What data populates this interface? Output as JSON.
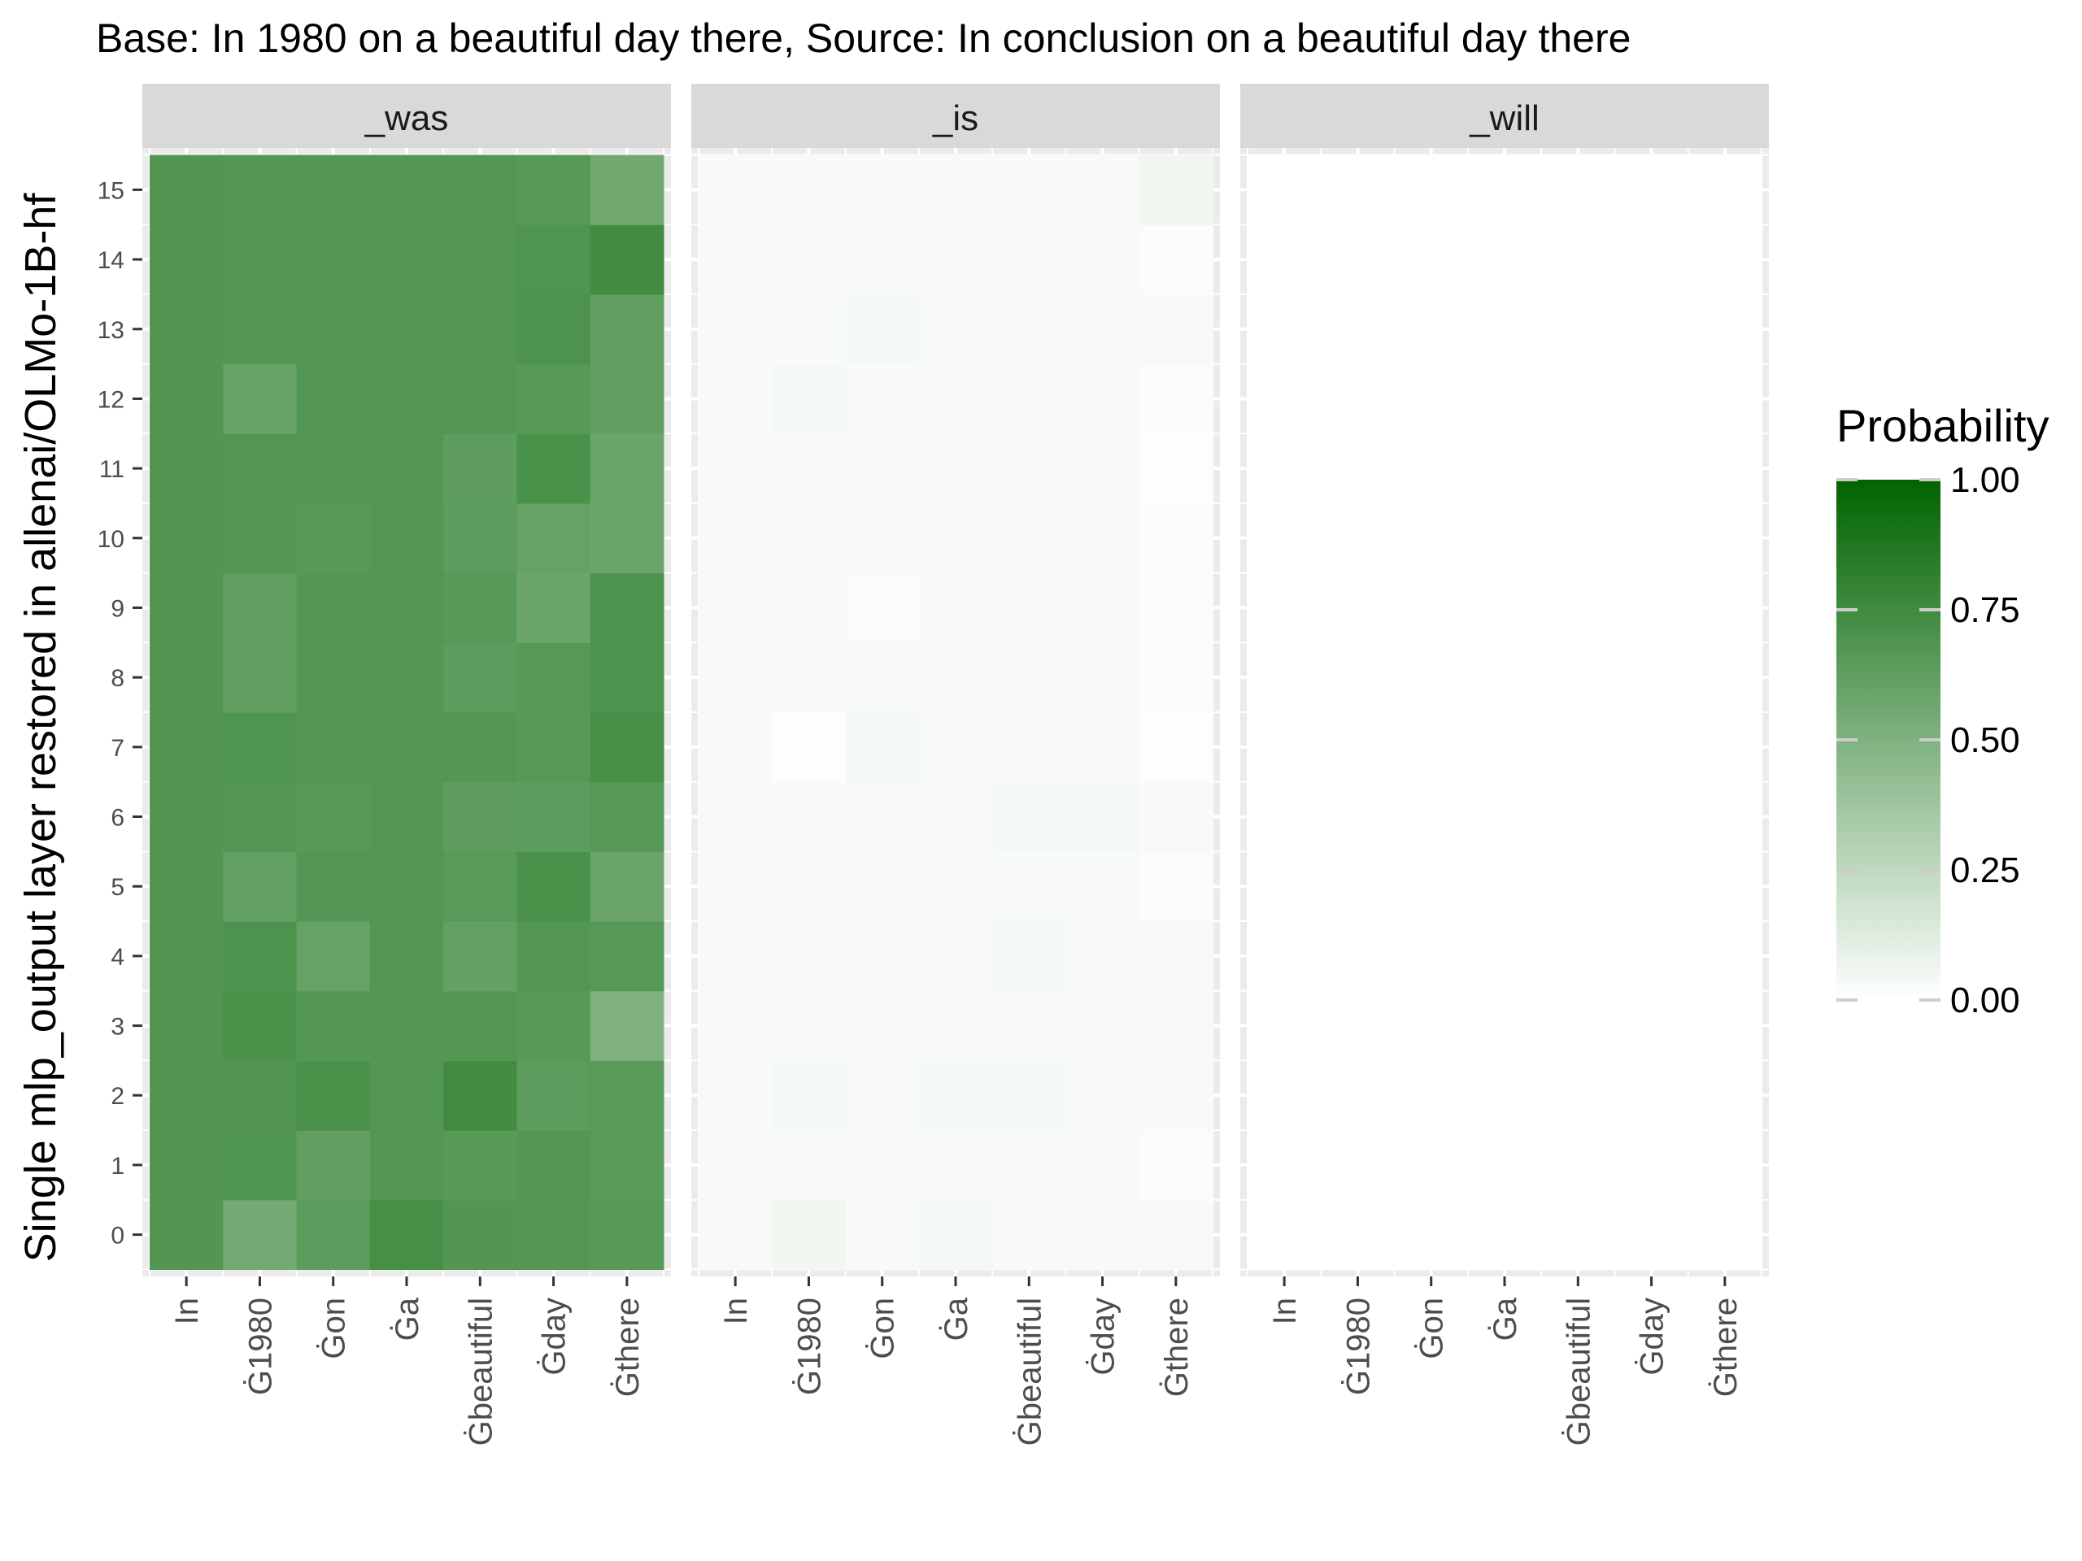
{
  "chart_data": {
    "type": "heatmap",
    "title": "Base: In 1980 on a beautiful day there, Source: In conclusion on a beautiful day there",
    "ylabel": "Single mlp_output layer restored in allenai/OLMo-1B-hf",
    "xlabel": "",
    "x_categories": [
      "In",
      "Ġ1980",
      "Ġon",
      "Ġa",
      "Ġbeautiful",
      "Ġday",
      "Ġthere"
    ],
    "y_categories": [
      "0",
      "1",
      "2",
      "3",
      "4",
      "5",
      "6",
      "7",
      "8",
      "9",
      "10",
      "11",
      "12",
      "13",
      "14",
      "15"
    ],
    "facets": [
      "_was",
      "_is",
      "_will"
    ],
    "legend": {
      "title": "Probability",
      "ticks": [
        "0.00",
        "0.25",
        "0.50",
        "0.75",
        "1.00"
      ],
      "tick_values": [
        0,
        0.25,
        0.5,
        0.75,
        1.0
      ],
      "low_color": "#ffffff",
      "high_color": "#006400",
      "position": "right"
    },
    "value_range": [
      0,
      1
    ],
    "series": [
      {
        "facet": "_was",
        "values": [
          [
            0.68,
            0.55,
            0.64,
            0.72,
            0.68,
            0.67,
            0.66
          ],
          [
            0.68,
            0.69,
            0.62,
            0.67,
            0.66,
            0.67,
            0.65
          ],
          [
            0.68,
            0.68,
            0.71,
            0.67,
            0.74,
            0.64,
            0.65
          ],
          [
            0.68,
            0.71,
            0.67,
            0.67,
            0.67,
            0.66,
            0.5
          ],
          [
            0.68,
            0.7,
            0.6,
            0.67,
            0.61,
            0.67,
            0.66
          ],
          [
            0.68,
            0.61,
            0.67,
            0.67,
            0.65,
            0.71,
            0.58
          ],
          [
            0.68,
            0.67,
            0.66,
            0.67,
            0.63,
            0.64,
            0.66
          ],
          [
            0.68,
            0.69,
            0.67,
            0.67,
            0.67,
            0.66,
            0.72
          ],
          [
            0.68,
            0.62,
            0.67,
            0.67,
            0.64,
            0.66,
            0.7
          ],
          [
            0.68,
            0.62,
            0.67,
            0.67,
            0.66,
            0.58,
            0.7
          ],
          [
            0.68,
            0.67,
            0.66,
            0.67,
            0.64,
            0.6,
            0.58
          ],
          [
            0.68,
            0.67,
            0.67,
            0.67,
            0.63,
            0.71,
            0.58
          ],
          [
            0.68,
            0.6,
            0.67,
            0.67,
            0.67,
            0.66,
            0.62
          ],
          [
            0.68,
            0.67,
            0.67,
            0.67,
            0.67,
            0.7,
            0.62
          ],
          [
            0.68,
            0.67,
            0.67,
            0.67,
            0.67,
            0.69,
            0.74
          ],
          [
            0.68,
            0.67,
            0.67,
            0.67,
            0.67,
            0.66,
            0.56
          ]
        ]
      },
      {
        "facet": "_is",
        "values": [
          [
            0.03,
            0.05,
            0.03,
            0.04,
            0.03,
            0.03,
            0.03
          ],
          [
            0.03,
            0.03,
            0.03,
            0.03,
            0.03,
            0.03,
            0.02
          ],
          [
            0.03,
            0.04,
            0.03,
            0.04,
            0.04,
            0.03,
            0.03
          ],
          [
            0.03,
            0.03,
            0.03,
            0.03,
            0.03,
            0.03,
            0.03
          ],
          [
            0.03,
            0.03,
            0.03,
            0.03,
            0.04,
            0.03,
            0.03
          ],
          [
            0.03,
            0.03,
            0.03,
            0.03,
            0.03,
            0.03,
            0.02
          ],
          [
            0.03,
            0.03,
            0.03,
            0.03,
            0.04,
            0.04,
            0.03
          ],
          [
            0.03,
            0.01,
            0.04,
            0.03,
            0.03,
            0.03,
            0.01
          ],
          [
            0.03,
            0.03,
            0.03,
            0.03,
            0.03,
            0.03,
            0.02
          ],
          [
            0.03,
            0.03,
            0.02,
            0.03,
            0.03,
            0.03,
            0.02
          ],
          [
            0.03,
            0.03,
            0.03,
            0.03,
            0.03,
            0.03,
            0.02
          ],
          [
            0.03,
            0.03,
            0.03,
            0.03,
            0.03,
            0.03,
            0.01
          ],
          [
            0.03,
            0.04,
            0.03,
            0.03,
            0.03,
            0.03,
            0.02
          ],
          [
            0.03,
            0.03,
            0.04,
            0.03,
            0.03,
            0.03,
            0.03
          ],
          [
            0.03,
            0.03,
            0.03,
            0.03,
            0.03,
            0.03,
            0.02
          ],
          [
            0.03,
            0.03,
            0.03,
            0.03,
            0.03,
            0.03,
            0.06
          ]
        ]
      },
      {
        "facet": "_will",
        "values": [
          [
            0,
            0,
            0,
            0,
            0,
            0,
            0
          ],
          [
            0,
            0,
            0,
            0,
            0,
            0,
            0
          ],
          [
            0,
            0,
            0,
            0,
            0,
            0,
            0
          ],
          [
            0,
            0,
            0,
            0,
            0,
            0,
            0
          ],
          [
            0,
            0,
            0,
            0,
            0,
            0,
            0
          ],
          [
            0,
            0,
            0,
            0,
            0,
            0,
            0
          ],
          [
            0,
            0,
            0,
            0,
            0,
            0,
            0
          ],
          [
            0,
            0,
            0,
            0,
            0,
            0,
            0
          ],
          [
            0,
            0,
            0,
            0,
            0,
            0,
            0
          ],
          [
            0,
            0,
            0,
            0,
            0,
            0,
            0
          ],
          [
            0,
            0,
            0,
            0,
            0,
            0,
            0
          ],
          [
            0,
            0,
            0,
            0,
            0,
            0,
            0
          ],
          [
            0,
            0,
            0,
            0,
            0,
            0,
            0
          ],
          [
            0,
            0,
            0,
            0,
            0,
            0,
            0
          ],
          [
            0,
            0,
            0,
            0,
            0,
            0,
            0
          ],
          [
            0,
            0,
            0,
            0,
            0,
            0,
            0
          ]
        ]
      }
    ]
  }
}
